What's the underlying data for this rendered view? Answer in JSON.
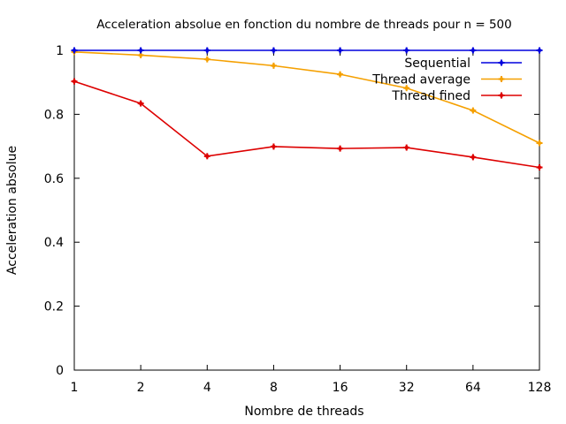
{
  "chart_data": {
    "type": "line",
    "title": "Acceleration absolue en fonction du nombre de threads pour n = 500",
    "xlabel": "Nombre de threads",
    "ylabel": "Acceleration absolue",
    "categories": [
      "1",
      "2",
      "4",
      "8",
      "16",
      "32",
      "64",
      "128"
    ],
    "ylim": [
      0,
      1
    ],
    "yticks": [
      "0",
      "0.2",
      "0.4",
      "0.6",
      "0.8",
      "1"
    ],
    "grid": false,
    "legend_position": "top-right",
    "series": [
      {
        "name": "Sequential",
        "color": "#0000dd",
        "values": [
          1,
          1,
          1,
          1,
          1,
          1,
          1,
          1
        ]
      },
      {
        "name": "Thread average",
        "color": "#f5a000",
        "values": [
          0.995,
          0.985,
          0.972,
          0.952,
          0.925,
          0.882,
          0.812,
          0.71
        ]
      },
      {
        "name": "Thread fined",
        "color": "#dd0000",
        "values": [
          0.903,
          0.834,
          0.669,
          0.699,
          0.693,
          0.696,
          0.666,
          0.634
        ]
      }
    ]
  }
}
